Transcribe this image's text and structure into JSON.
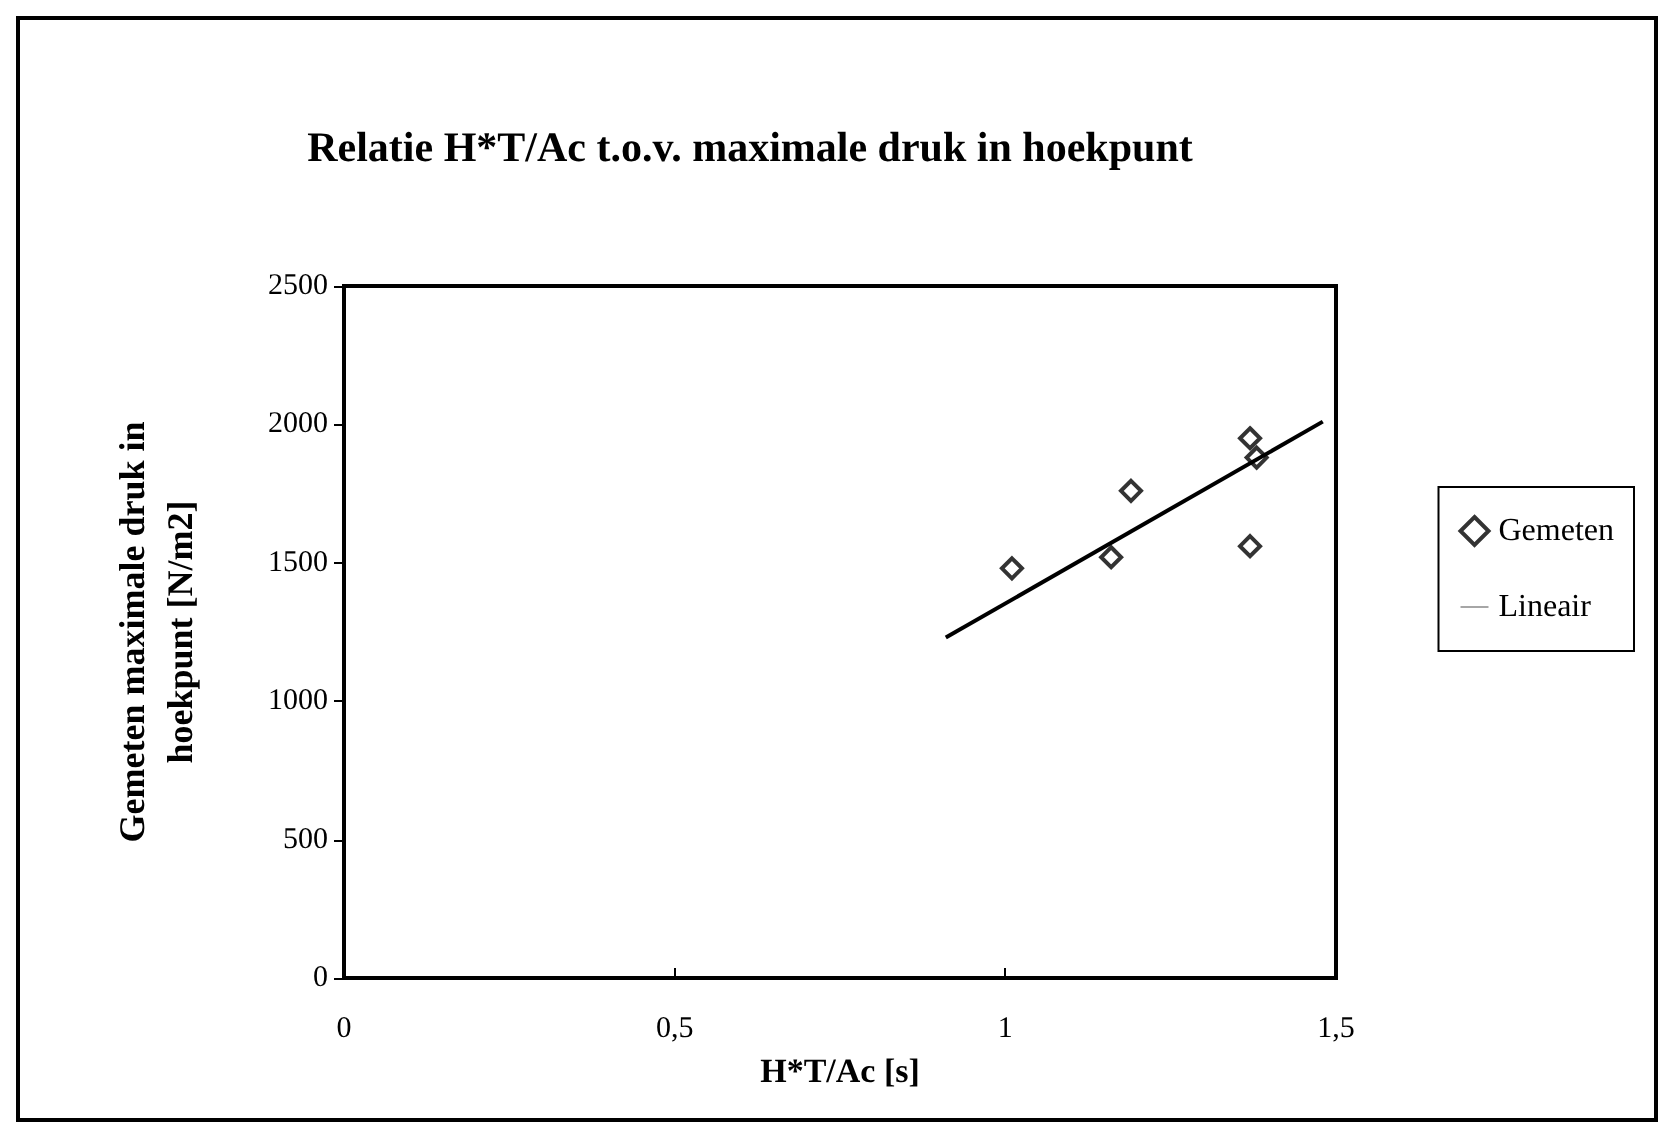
{
  "chart_data": {
    "type": "scatter",
    "title": "Relatie H*T/Ac t.o.v. maximale druk in hoekpunt",
    "xlabel": "H*T/Ac [s]",
    "ylabel": "Gemeten maximale druk in\nhoekpunt [N/m2]",
    "xlim": [
      0,
      1.5
    ],
    "xticks": [
      {
        "value": 0,
        "label": "0"
      },
      {
        "value": 0.5,
        "label": "0,5"
      },
      {
        "value": 1,
        "label": "1"
      },
      {
        "value": 1.5,
        "label": "1,5"
      }
    ],
    "ylim": [
      0,
      2500
    ],
    "yticks": [
      0,
      500,
      1000,
      1500,
      2000,
      2500
    ],
    "grid": false,
    "legend": "right",
    "marker": "diamond",
    "series": [
      {
        "name": "Gemeten",
        "color": "#000000",
        "x": [
          1.01,
          1.16,
          1.19,
          1.37,
          1.37,
          1.38
        ],
        "values": [
          1480,
          1520,
          1760,
          1950,
          1560,
          1880
        ]
      },
      {
        "name": "Lineair",
        "type": "line",
        "color": "#000000",
        "marker": "none",
        "line_style": "solid",
        "x": [
          0.91,
          1.48
        ],
        "values": [
          1230,
          2010
        ]
      }
    ]
  }
}
